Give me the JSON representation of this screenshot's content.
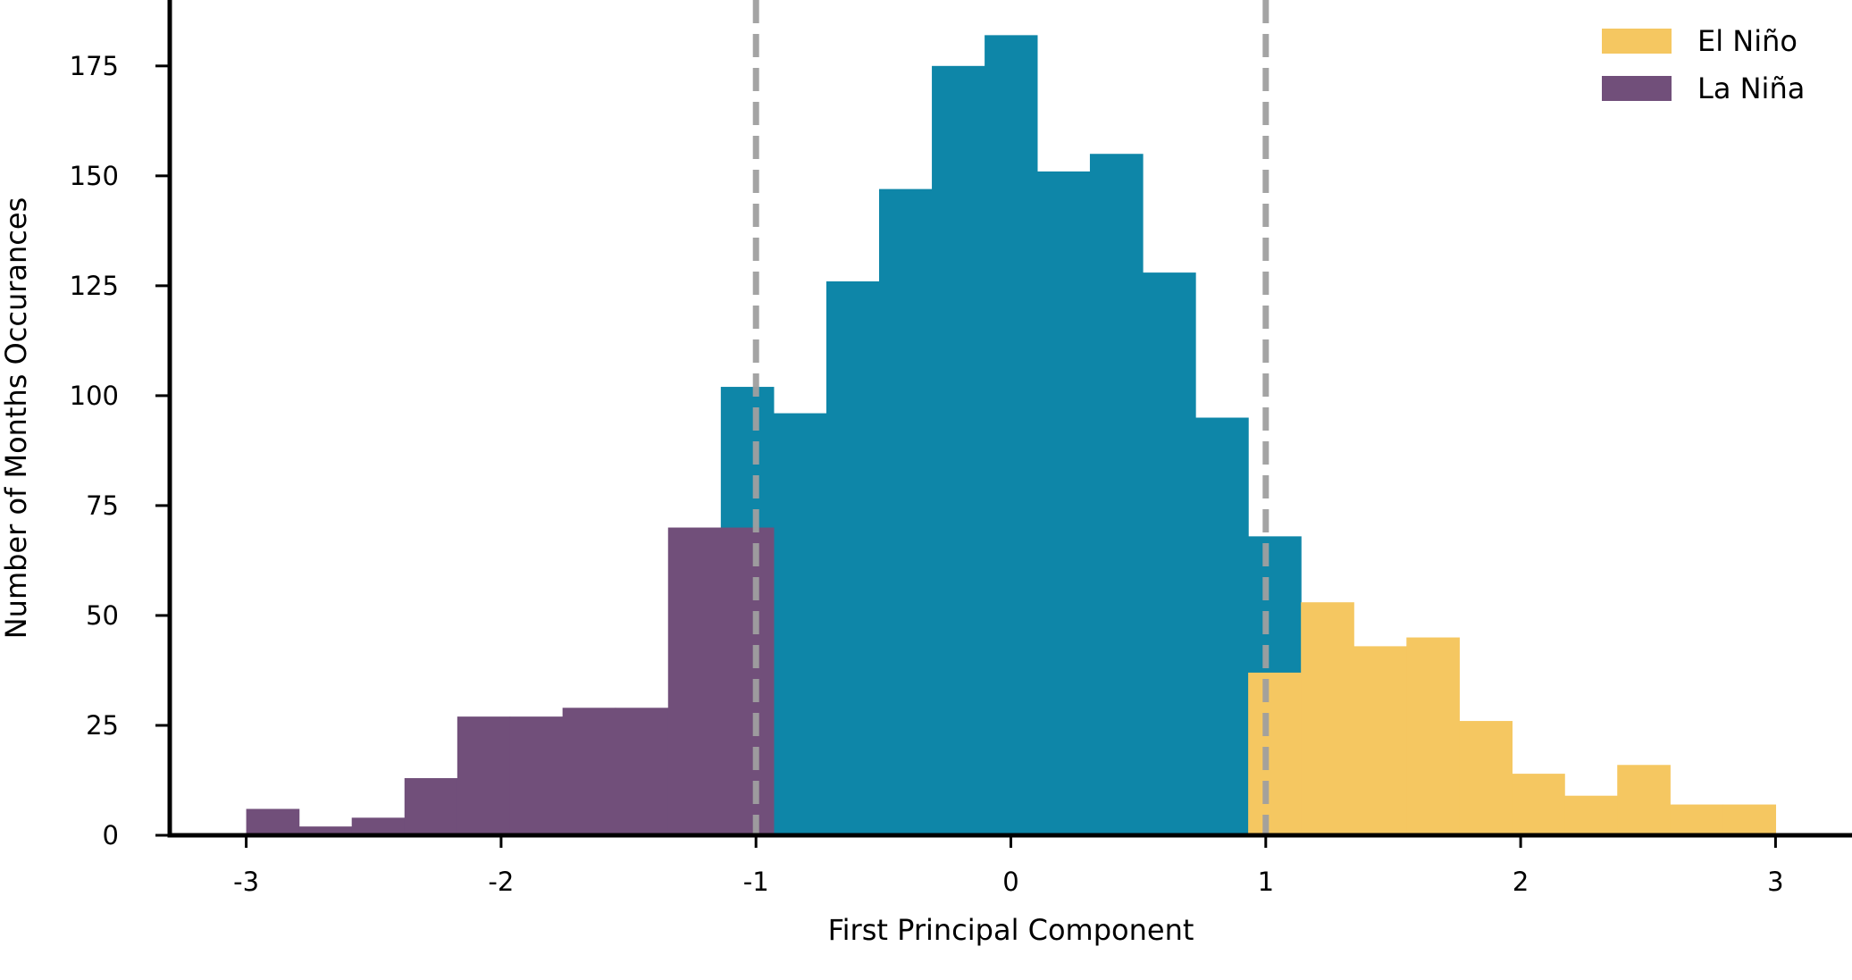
{
  "chart_data": {
    "type": "bar",
    "title": "",
    "xlabel": "First Principal Component",
    "ylabel": "Number of Months Occurances",
    "xlim": [
      -3.3,
      3.3
    ],
    "ylim": [
      0,
      190
    ],
    "xticks": [
      "-3",
      "-2",
      "-1",
      "0",
      "1",
      "2",
      "3"
    ],
    "yticks": [
      "0",
      "25",
      "50",
      "75",
      "100",
      "125",
      "150",
      "175"
    ],
    "grid": false,
    "legend_position": "top-right",
    "thresholds": [
      -1,
      1
    ],
    "bin_edges": [
      -3.0,
      -2.793,
      -2.586,
      -2.379,
      -2.172,
      -1.966,
      -1.759,
      -1.552,
      -1.345,
      -1.138,
      -0.931,
      -0.724,
      -0.517,
      -0.31,
      -0.103,
      0.103,
      0.31,
      0.517,
      0.724,
      0.931,
      1.138,
      1.345,
      1.552,
      1.759,
      1.966,
      2.172,
      2.379,
      2.586,
      2.793,
      3.0
    ],
    "series": [
      {
        "name": "",
        "color": "#0e86a8",
        "values": [
          0,
          0,
          0,
          0,
          0,
          0,
          0,
          0,
          0,
          102,
          96,
          126,
          147,
          175,
          182,
          151,
          155,
          128,
          95,
          68,
          0,
          0,
          0,
          0,
          0,
          0,
          0,
          0,
          0
        ]
      },
      {
        "name": "La Niña",
        "color": "#714f7a",
        "values": [
          6,
          2,
          4,
          13,
          27,
          27,
          29,
          29,
          70,
          70,
          0,
          0,
          0,
          0,
          0,
          0,
          0,
          0,
          0,
          0,
          0,
          0,
          0,
          0,
          0,
          0,
          0,
          0,
          0
        ]
      },
      {
        "name": "El Niño",
        "color": "#f5c761",
        "values": [
          0,
          0,
          0,
          0,
          0,
          0,
          0,
          0,
          0,
          0,
          0,
          0,
          0,
          0,
          0,
          0,
          0,
          0,
          0,
          37,
          53,
          43,
          45,
          26,
          14,
          9,
          16,
          7,
          7
        ]
      }
    ],
    "legend": [
      {
        "name": "El Niño",
        "color": "#f5c761"
      },
      {
        "name": "La Niña",
        "color": "#714f7a"
      }
    ]
  }
}
